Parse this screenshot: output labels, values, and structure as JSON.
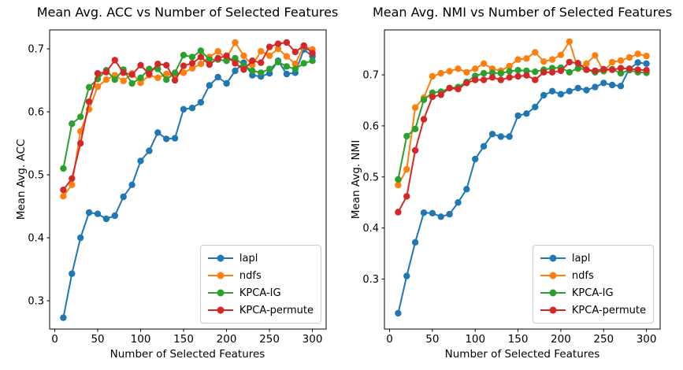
{
  "figure": {
    "background": "#ffffff"
  },
  "chart_data": [
    {
      "type": "line",
      "title": "Mean Avg. ACC vs Number of Selected Features",
      "xlabel": "Number of Selected Features",
      "ylabel": "Mean Avg. ACC",
      "xlim": [
        -6,
        316
      ],
      "ylim": [
        0.255,
        0.73
      ],
      "xticks": [
        0,
        50,
        100,
        150,
        200,
        250,
        300
      ],
      "yticks": [
        0.3,
        0.4,
        0.5,
        0.6,
        0.7
      ],
      "grid": false,
      "legend_position": "lower right",
      "marker": "o",
      "x": [
        10,
        20,
        30,
        40,
        50,
        60,
        70,
        80,
        90,
        100,
        110,
        120,
        130,
        140,
        150,
        160,
        170,
        180,
        190,
        200,
        210,
        220,
        230,
        240,
        250,
        260,
        270,
        280,
        290,
        300
      ],
      "series": [
        {
          "name": "lapl",
          "color": "#1f77b4",
          "values": [
            0.273,
            0.343,
            0.4,
            0.44,
            0.438,
            0.43,
            0.435,
            0.465,
            0.484,
            0.522,
            0.538,
            0.567,
            0.557,
            0.558,
            0.604,
            0.606,
            0.615,
            0.642,
            0.655,
            0.645,
            0.665,
            0.678,
            0.658,
            0.656,
            0.661,
            0.681,
            0.66,
            0.662,
            0.699,
            0.688
          ]
        },
        {
          "name": "ndfs",
          "color": "#ff7f0e",
          "values": [
            0.466,
            0.484,
            0.569,
            0.604,
            0.64,
            0.651,
            0.658,
            0.649,
            0.661,
            0.646,
            0.658,
            0.654,
            0.66,
            0.659,
            0.662,
            0.669,
            0.676,
            0.687,
            0.696,
            0.685,
            0.71,
            0.689,
            0.674,
            0.696,
            0.689,
            0.7,
            0.688,
            0.676,
            0.704,
            0.699
          ]
        },
        {
          "name": "KPCA-IG",
          "color": "#2ca02c",
          "values": [
            0.51,
            0.581,
            0.592,
            0.639,
            0.652,
            0.666,
            0.651,
            0.667,
            0.645,
            0.654,
            0.668,
            0.668,
            0.651,
            0.662,
            0.69,
            0.687,
            0.697,
            0.683,
            0.683,
            0.681,
            0.685,
            0.674,
            0.665,
            0.662,
            0.668,
            0.679,
            0.672,
            0.668,
            0.677,
            0.681
          ]
        },
        {
          "name": "KPCA-permute",
          "color": "#d62728",
          "values": [
            0.476,
            0.494,
            0.55,
            0.616,
            0.661,
            0.663,
            0.682,
            0.662,
            0.659,
            0.674,
            0.66,
            0.676,
            0.674,
            0.65,
            0.673,
            0.677,
            0.687,
            0.675,
            0.685,
            0.689,
            0.677,
            0.667,
            0.681,
            0.678,
            0.703,
            0.708,
            0.71,
            0.695,
            0.705,
            0.693
          ]
        }
      ]
    },
    {
      "type": "line",
      "title": "Mean Avg. NMI vs Number of Selected Features",
      "xlabel": "Number of Selected Features",
      "ylabel": "Mean Avg. NMI",
      "xlim": [
        -6,
        316
      ],
      "ylim": [
        0.202,
        0.788
      ],
      "xticks": [
        0,
        50,
        100,
        150,
        200,
        250,
        300
      ],
      "yticks": [
        0.3,
        0.4,
        0.5,
        0.6,
        0.7
      ],
      "grid": false,
      "legend_position": "lower right",
      "marker": "o",
      "x": [
        10,
        20,
        30,
        40,
        50,
        60,
        70,
        80,
        90,
        100,
        110,
        120,
        130,
        140,
        150,
        160,
        170,
        180,
        190,
        200,
        210,
        220,
        230,
        240,
        250,
        260,
        270,
        280,
        290,
        300
      ],
      "series": [
        {
          "name": "lapl",
          "color": "#1f77b4",
          "values": [
            0.233,
            0.306,
            0.372,
            0.43,
            0.429,
            0.422,
            0.427,
            0.45,
            0.476,
            0.535,
            0.56,
            0.584,
            0.579,
            0.579,
            0.62,
            0.624,
            0.637,
            0.66,
            0.668,
            0.662,
            0.668,
            0.674,
            0.67,
            0.676,
            0.684,
            0.68,
            0.678,
            0.712,
            0.724,
            0.722
          ]
        },
        {
          "name": "ndfs",
          "color": "#ff7f0e",
          "values": [
            0.484,
            0.515,
            0.636,
            0.655,
            0.697,
            0.703,
            0.707,
            0.712,
            0.705,
            0.712,
            0.722,
            0.712,
            0.708,
            0.717,
            0.73,
            0.732,
            0.744,
            0.726,
            0.73,
            0.739,
            0.765,
            0.712,
            0.722,
            0.738,
            0.707,
            0.725,
            0.728,
            0.734,
            0.741,
            0.737
          ]
        },
        {
          "name": "KPCA-IG",
          "color": "#2ca02c",
          "values": [
            0.495,
            0.58,
            0.594,
            0.651,
            0.665,
            0.667,
            0.674,
            0.676,
            0.686,
            0.698,
            0.703,
            0.704,
            0.703,
            0.707,
            0.709,
            0.708,
            0.706,
            0.71,
            0.713,
            0.714,
            0.705,
            0.713,
            0.71,
            0.705,
            0.708,
            0.711,
            0.703,
            0.709,
            0.705,
            0.704
          ]
        },
        {
          "name": "KPCA-permute",
          "color": "#d62728",
          "values": [
            0.431,
            0.462,
            0.552,
            0.613,
            0.657,
            0.661,
            0.674,
            0.672,
            0.684,
            0.69,
            0.69,
            0.695,
            0.69,
            0.695,
            0.697,
            0.699,
            0.69,
            0.705,
            0.705,
            0.708,
            0.725,
            0.723,
            0.71,
            0.708,
            0.711,
            0.71,
            0.713,
            0.712,
            0.71,
            0.709
          ]
        }
      ]
    }
  ]
}
